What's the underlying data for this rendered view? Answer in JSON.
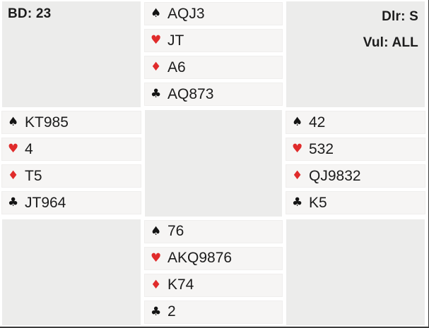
{
  "header": {
    "board": "BD: 23",
    "dealer": "Dlr: S",
    "vulnerable": "Vul: ALL"
  },
  "symbols": {
    "spade": "♠",
    "heart": "♥",
    "diamond": "♦",
    "club": "♣"
  },
  "colors": {
    "black_suit": "#141414",
    "red_suit": "#e02b2b",
    "suit_cell_bg": "#f6f5f4",
    "panel_bg": "#ececeb",
    "text": "#1c1c1c",
    "edge_border": "#3c3c3c"
  },
  "hands": {
    "north": {
      "spades": "AQJ3",
      "hearts": "JT",
      "diamonds": "A6",
      "clubs": "AQ873"
    },
    "west": {
      "spades": "KT985",
      "hearts": "4",
      "diamonds": "T5",
      "clubs": "JT964"
    },
    "east": {
      "spades": "42",
      "hearts": "532",
      "diamonds": "QJ9832",
      "clubs": "K5"
    },
    "south": {
      "spades": "76",
      "hearts": "AKQ9876",
      "diamonds": "K74",
      "clubs": "2"
    }
  }
}
